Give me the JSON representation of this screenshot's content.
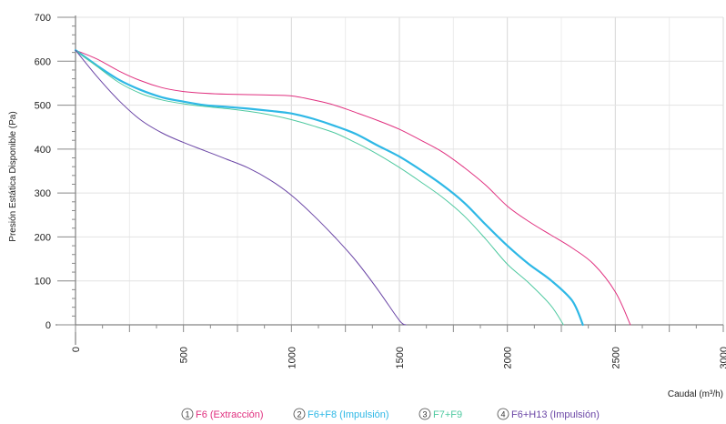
{
  "chart_data": {
    "type": "line",
    "xlabel": "Caudal (m³/h)",
    "ylabel": "Presión Estática Disponible (Pa)",
    "xlim": [
      0,
      3000
    ],
    "ylim": [
      0,
      700
    ],
    "x_ticks": [
      "0",
      "500",
      "1000",
      "1500",
      "2000",
      "2500",
      "3000"
    ],
    "y_ticks": [
      "0",
      "100",
      "200",
      "300",
      "400",
      "500",
      "600",
      "700"
    ],
    "grid": true,
    "legend_position": "bottom",
    "series": [
      {
        "name": "F6 (Extracción)",
        "number": "1",
        "color": "#e0307f",
        "width": 1,
        "points": [
          [
            0,
            625
          ],
          [
            100,
            605
          ],
          [
            200,
            578
          ],
          [
            300,
            556
          ],
          [
            400,
            540
          ],
          [
            500,
            531
          ],
          [
            600,
            527
          ],
          [
            700,
            525
          ],
          [
            800,
            524
          ],
          [
            900,
            523
          ],
          [
            1000,
            521
          ],
          [
            1100,
            512
          ],
          [
            1200,
            500
          ],
          [
            1300,
            483
          ],
          [
            1400,
            465
          ],
          [
            1500,
            445
          ],
          [
            1600,
            420
          ],
          [
            1700,
            393
          ],
          [
            1800,
            358
          ],
          [
            1900,
            318
          ],
          [
            2000,
            270
          ],
          [
            2100,
            235
          ],
          [
            2200,
            205
          ],
          [
            2300,
            175
          ],
          [
            2400,
            138
          ],
          [
            2500,
            75
          ],
          [
            2570,
            0
          ]
        ]
      },
      {
        "name": "F6+F8 (Impulsión)",
        "number": "2",
        "color": "#2eb8e6",
        "width": 2.2,
        "points": [
          [
            0,
            625
          ],
          [
            100,
            590
          ],
          [
            200,
            558
          ],
          [
            300,
            535
          ],
          [
            400,
            518
          ],
          [
            500,
            508
          ],
          [
            600,
            500
          ],
          [
            700,
            496
          ],
          [
            800,
            492
          ],
          [
            900,
            487
          ],
          [
            1000,
            481
          ],
          [
            1100,
            469
          ],
          [
            1200,
            453
          ],
          [
            1300,
            434
          ],
          [
            1400,
            408
          ],
          [
            1500,
            383
          ],
          [
            1600,
            352
          ],
          [
            1700,
            318
          ],
          [
            1800,
            278
          ],
          [
            1900,
            228
          ],
          [
            2000,
            180
          ],
          [
            2100,
            138
          ],
          [
            2200,
            102
          ],
          [
            2300,
            55
          ],
          [
            2350,
            0
          ]
        ]
      },
      {
        "name": "F7+F9",
        "number": "3",
        "color": "#4fc9a0",
        "width": 1,
        "points": [
          [
            0,
            625
          ],
          [
            100,
            588
          ],
          [
            200,
            552
          ],
          [
            300,
            527
          ],
          [
            400,
            512
          ],
          [
            500,
            503
          ],
          [
            600,
            497
          ],
          [
            700,
            492
          ],
          [
            800,
            486
          ],
          [
            900,
            478
          ],
          [
            1000,
            467
          ],
          [
            1100,
            453
          ],
          [
            1200,
            437
          ],
          [
            1300,
            414
          ],
          [
            1400,
            388
          ],
          [
            1500,
            358
          ],
          [
            1600,
            325
          ],
          [
            1700,
            290
          ],
          [
            1800,
            248
          ],
          [
            1900,
            195
          ],
          [
            2000,
            138
          ],
          [
            2100,
            95
          ],
          [
            2200,
            45
          ],
          [
            2260,
            0
          ]
        ]
      },
      {
        "name": "F6+H13 (Impulsión)",
        "number": "4",
        "color": "#6b46a6",
        "width": 1,
        "points": [
          [
            0,
            625
          ],
          [
            100,
            565
          ],
          [
            200,
            511
          ],
          [
            300,
            467
          ],
          [
            400,
            437
          ],
          [
            500,
            415
          ],
          [
            600,
            396
          ],
          [
            700,
            377
          ],
          [
            800,
            357
          ],
          [
            900,
            330
          ],
          [
            1000,
            295
          ],
          [
            1100,
            250
          ],
          [
            1200,
            200
          ],
          [
            1300,
            145
          ],
          [
            1400,
            80
          ],
          [
            1500,
            10
          ],
          [
            1530,
            0
          ]
        ]
      }
    ]
  }
}
